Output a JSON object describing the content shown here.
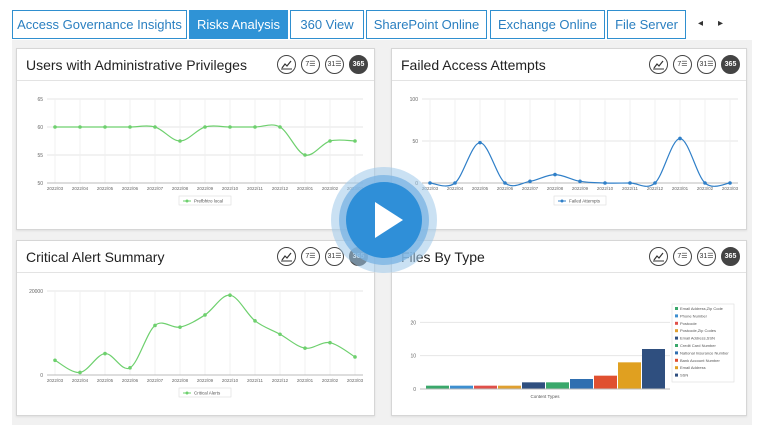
{
  "tabs": [
    {
      "label": "Access Governance Insights",
      "active": false
    },
    {
      "label": "Risks Analysis",
      "active": true
    },
    {
      "label": "360 View",
      "active": false
    },
    {
      "label": "SharePoint Online",
      "active": false
    },
    {
      "label": "Exchange Online",
      "active": false
    },
    {
      "label": "File Server",
      "active": false
    }
  ],
  "tab_nav": {
    "prev": "◂",
    "next": "▸"
  },
  "tools": {
    "trend": "trend-icon",
    "week": "7☰",
    "month": "31☰",
    "year": "365"
  },
  "widgets": {
    "admin": {
      "title": "Users with Administrative Privileges"
    },
    "failed": {
      "title": "Failed Access Attempts"
    },
    "alerts": {
      "title": "Critical Alert Summary"
    },
    "files": {
      "title": "Files By Type"
    }
  },
  "colors": {
    "accent": "#2f93d6",
    "line_green": "#6ed06e",
    "line_blue": "#2f7fc8"
  },
  "chart_data": [
    {
      "type": "line",
      "yticks": [
        "50",
        "55",
        "60",
        "65"
      ],
      "ylim": [
        50,
        65
      ],
      "categories": [
        "2022/03",
        "2022/04",
        "2022/05",
        "2022/06",
        "2022/07",
        "2022/08",
        "2022/09",
        "2022/10",
        "2022/11",
        "2022/12",
        "2023/01",
        "2023/02",
        "2023/03"
      ],
      "series": [
        {
          "name": "Prefbhtro local",
          "values": [
            60,
            60,
            60,
            60,
            60,
            57.5,
            60,
            60,
            60,
            60,
            55,
            57.5,
            57.5
          ]
        }
      ]
    },
    {
      "type": "line",
      "yticks": [
        "0",
        "50",
        "100"
      ],
      "ylim": [
        0,
        100
      ],
      "categories": [
        "2022/03",
        "2022/04",
        "2022/05",
        "2022/06",
        "2022/07",
        "2022/08",
        "2022/09",
        "2022/10",
        "2022/11",
        "2022/12",
        "2023/01",
        "2023/02",
        "2023/03"
      ],
      "series": [
        {
          "name": "Failed Attempts",
          "values": [
            0,
            0,
            48,
            0,
            2,
            10,
            2,
            0,
            0,
            0,
            53,
            0,
            0
          ]
        }
      ]
    },
    {
      "type": "line",
      "yticks": [
        "0",
        "20000"
      ],
      "ylim": [
        0,
        20000
      ],
      "categories": [
        "2022/03",
        "2022/04",
        "2022/05",
        "2022/06",
        "2022/07",
        "2022/08",
        "2022/09",
        "2022/10",
        "2022/11",
        "2022/12",
        "2023/01",
        "2023/02",
        "2023/03"
      ],
      "series": [
        {
          "name": "Critical Alerts",
          "values": [
            3500,
            600,
            5100,
            1700,
            11800,
            11400,
            14300,
            19000,
            12900,
            9700,
            6400,
            7700,
            4300
          ]
        }
      ]
    },
    {
      "type": "bar",
      "yticks": [
        "0",
        "10",
        "20"
      ],
      "ylim": [
        0,
        30
      ],
      "xlabel": "Content Types",
      "categories": [
        "Email Address,Zip Code",
        "Phone Number",
        "Postcode",
        "Postcode,Zip Codes",
        "Email Address,SSN",
        "Credit Card Number",
        "National Insurance Number",
        "Bank Account Number",
        "Email Address",
        "SSN"
      ],
      "values": [
        1,
        1,
        1,
        1,
        2,
        2,
        3,
        4,
        8,
        12
      ],
      "colors": [
        "#3aa86b",
        "#3d8fd0",
        "#e0504a",
        "#e0a030",
        "#2f4f7f",
        "#3aa86b",
        "#2f6fb0",
        "#e05030",
        "#e0a020",
        "#2f4f7f"
      ]
    }
  ]
}
